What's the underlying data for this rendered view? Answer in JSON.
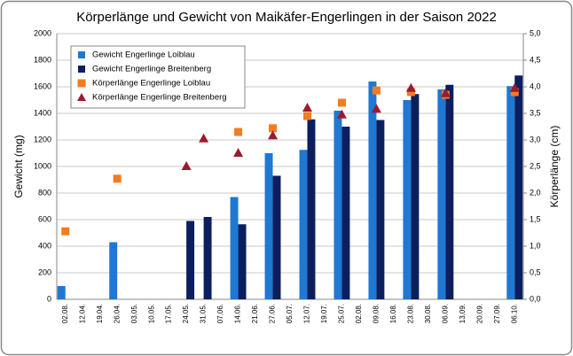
{
  "chart_data": {
    "type": "bar-scatter",
    "title": "Körperlänge und Gewicht von Maikäfer-Engerlingen in der Saison 2022",
    "y_label": "Gewicht (mg)",
    "y2_label": "Körperlänge (cm)",
    "categories": [
      "02.08.",
      "12.04.",
      "19.04.",
      "26.04.",
      "03.05.",
      "10.05.",
      "17.05.",
      "24.05.",
      "31.05.",
      "07.06.",
      "14.06.",
      "21.06.",
      "27.06.",
      "05.07.",
      "12.07.",
      "19.07.",
      "25.07.",
      "02.08.",
      "09.08.",
      "16.08.",
      "23.08.",
      "30.08.",
      "06.09.",
      "13.09.",
      "20.09.",
      "27.09.",
      "06.10."
    ],
    "series": [
      {
        "name": "Gewicht Engerlinge Loiblau",
        "type": "bar",
        "color": "#1f78d1",
        "values": [
          100,
          null,
          null,
          430,
          null,
          null,
          null,
          null,
          null,
          null,
          770,
          null,
          1100,
          null,
          1125,
          null,
          1420,
          null,
          1640,
          null,
          1500,
          null,
          1580,
          null,
          null,
          null,
          1605
        ]
      },
      {
        "name": "Gewicht Engerlinge Breitenberg",
        "type": "bar",
        "color": "#0b1f5e",
        "values": [
          null,
          null,
          null,
          null,
          null,
          null,
          null,
          590,
          620,
          null,
          565,
          null,
          930,
          null,
          1355,
          null,
          1300,
          null,
          1350,
          null,
          1545,
          null,
          1615,
          null,
          null,
          null,
          1685
        ]
      },
      {
        "name": "Körperlänge Engerlinge Loiblau",
        "type": "scatter",
        "marker": "square",
        "axis": "y2",
        "color": "#f47c20",
        "values": [
          1.28,
          null,
          null,
          2.27,
          null,
          null,
          null,
          null,
          null,
          null,
          3.15,
          null,
          3.22,
          null,
          3.45,
          null,
          3.7,
          null,
          3.93,
          null,
          3.9,
          null,
          3.85,
          null,
          null,
          null,
          3.9
        ]
      },
      {
        "name": "Körperlänge Engerlinge Breitenberg",
        "type": "scatter",
        "marker": "triangle",
        "axis": "y2",
        "color": "#9b1b30",
        "values": [
          null,
          null,
          null,
          null,
          null,
          null,
          null,
          2.5,
          3.02,
          null,
          2.75,
          null,
          3.08,
          null,
          3.6,
          null,
          3.47,
          null,
          3.58,
          null,
          3.97,
          null,
          3.87,
          null,
          null,
          null,
          3.97
        ]
      }
    ],
    "ylim": [
      0,
      2000
    ],
    "yticks": [
      0,
      200,
      400,
      600,
      800,
      1000,
      1200,
      1400,
      1600,
      1800,
      2000
    ],
    "y2lim": [
      0,
      5
    ],
    "y2ticks": [
      {
        "value": 0,
        "label": "0,0"
      },
      {
        "value": 0.5,
        "label": "0,5"
      },
      {
        "value": 1,
        "label": "1,0"
      },
      {
        "value": 1.5,
        "label": "1,5"
      },
      {
        "value": 2,
        "label": "2,0"
      },
      {
        "value": 2.5,
        "label": "2,5"
      },
      {
        "value": 3,
        "label": "3,0"
      },
      {
        "value": 3.5,
        "label": "3,5"
      },
      {
        "value": 4,
        "label": "4,0"
      },
      {
        "value": 4.5,
        "label": "4,5"
      },
      {
        "value": 5,
        "label": "5,0"
      }
    ],
    "grid": true,
    "legend": "top-left"
  }
}
